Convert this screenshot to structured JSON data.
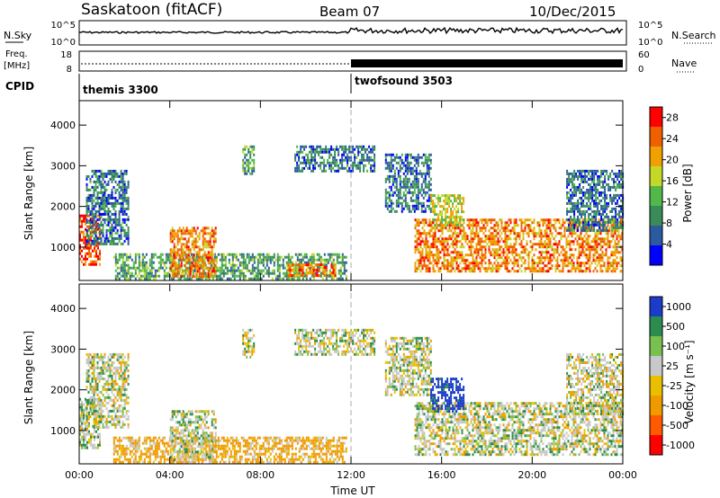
{
  "header": {
    "station": "Saskatoon (fitACF)",
    "beam": "Beam 07",
    "date": "10/Dec/2015"
  },
  "strip_labels": {
    "nsky": "N.Sky",
    "nsky_ticks": [
      "10^5",
      "10^0"
    ],
    "nsearch": "N.Search",
    "nsearch_ticks": [
      "10^5",
      "10^0"
    ],
    "freq_label_1": "Freq.",
    "freq_label_2": "[MHz]",
    "freq_ticks": [
      "18",
      "8"
    ],
    "nave": "Nave",
    "nave_ticks": [
      "60",
      "0"
    ],
    "cpid": "CPID"
  },
  "cpid_segments": [
    {
      "label": "themis 3300",
      "start_hour": 0
    },
    {
      "label": "twofsound 3503",
      "start_hour": 12
    }
  ],
  "colors": {
    "power_scale": [
      "#0000ff",
      "#2c5aa0",
      "#3a8a5a",
      "#52b848",
      "#c4d82a",
      "#f0a000",
      "#f06000",
      "#ff0000"
    ],
    "velocity_scale": [
      "#ff0000",
      "#ff5a00",
      "#f09a00",
      "#e8c000",
      "#c8c8c8",
      "#7ac050",
      "#2c8c50",
      "#1a3cc8"
    ],
    "ground_scatter": "#c8c8c8"
  },
  "chart_data": [
    {
      "type": "heatmap",
      "name": "power",
      "xlabel": "",
      "ylabel": "Slant Range [km]",
      "x_ticks": [
        "00:00",
        "04:00",
        "08:00",
        "12:00",
        "16:00",
        "20:00",
        "00:00"
      ],
      "y_ticks": [
        1000,
        2000,
        3000,
        4000
      ],
      "xlim": [
        0,
        24
      ],
      "ylim": [
        180,
        4600
      ],
      "colorbar": {
        "label": "Power [dB]",
        "ticks": [
          4,
          8,
          12,
          16,
          20,
          24,
          28
        ],
        "range": [
          0,
          30
        ]
      },
      "features": [
        {
          "t0": 0.0,
          "t1": 0.9,
          "r0": 550,
          "r1": 1800,
          "level": 28
        },
        {
          "t0": 0.3,
          "t1": 2.2,
          "r0": 1100,
          "r1": 2900,
          "level": 8
        },
        {
          "t0": 1.5,
          "t1": 11.8,
          "r0": 220,
          "r1": 850,
          "level": 12
        },
        {
          "t0": 4.0,
          "t1": 6.0,
          "r0": 300,
          "r1": 1500,
          "level": 24
        },
        {
          "t0": 7.2,
          "t1": 7.7,
          "r0": 2800,
          "r1": 3500,
          "level": 12
        },
        {
          "t0": 9.2,
          "t1": 11.3,
          "r0": 300,
          "r1": 600,
          "level": 24
        },
        {
          "t0": 9.5,
          "t1": 13.0,
          "r0": 2900,
          "r1": 3500,
          "level": 8
        },
        {
          "t0": 13.5,
          "t1": 15.5,
          "r0": 1900,
          "r1": 3300,
          "level": 8
        },
        {
          "t0": 14.8,
          "t1": 24.0,
          "r0": 400,
          "r1": 1700,
          "level": 24
        },
        {
          "t0": 15.5,
          "t1": 17.0,
          "r0": 1500,
          "r1": 2300,
          "level": 18
        },
        {
          "t0": 21.5,
          "t1": 24.0,
          "r0": 1400,
          "r1": 2900,
          "level": 8
        }
      ]
    },
    {
      "type": "heatmap",
      "name": "velocity",
      "xlabel": "Time UT",
      "ylabel": "Slant Range [km]",
      "x_ticks": [
        "00:00",
        "04:00",
        "08:00",
        "12:00",
        "16:00",
        "20:00",
        "00:00"
      ],
      "y_ticks": [
        1000,
        2000,
        3000,
        4000
      ],
      "xlim": [
        0,
        24
      ],
      "ylim": [
        180,
        4600
      ],
      "colorbar": {
        "label": "Velocity [m s⁻¹]",
        "ticks": [
          1000,
          500,
          100,
          25,
          -25,
          -100,
          -500,
          -1000
        ]
      },
      "features": [
        {
          "t0": 0.0,
          "t1": 0.9,
          "r0": 550,
          "r1": 1800,
          "level": 30
        },
        {
          "t0": 0.3,
          "t1": 2.2,
          "r0": 1100,
          "r1": 2900,
          "level": 0
        },
        {
          "t0": 1.5,
          "t1": 11.8,
          "r0": 220,
          "r1": 850,
          "level": -150
        },
        {
          "t0": 4.0,
          "t1": 6.0,
          "r0": 300,
          "r1": 1500,
          "level": 0
        },
        {
          "t0": 7.2,
          "t1": 7.7,
          "r0": 2800,
          "r1": 3500,
          "level": 0
        },
        {
          "t0": 9.5,
          "t1": 13.0,
          "r0": 2900,
          "r1": 3500,
          "level": 0
        },
        {
          "t0": 13.5,
          "t1": 15.5,
          "r0": 1900,
          "r1": 3300,
          "level": 0
        },
        {
          "t0": 14.8,
          "t1": 24.0,
          "r0": 400,
          "r1": 1700,
          "level": 0
        },
        {
          "t0": 15.5,
          "t1": 17.0,
          "r0": 1500,
          "r1": 2300,
          "level": 600
        },
        {
          "t0": 21.5,
          "t1": 24.0,
          "r0": 1400,
          "r1": 2900,
          "level": 0
        }
      ]
    }
  ]
}
